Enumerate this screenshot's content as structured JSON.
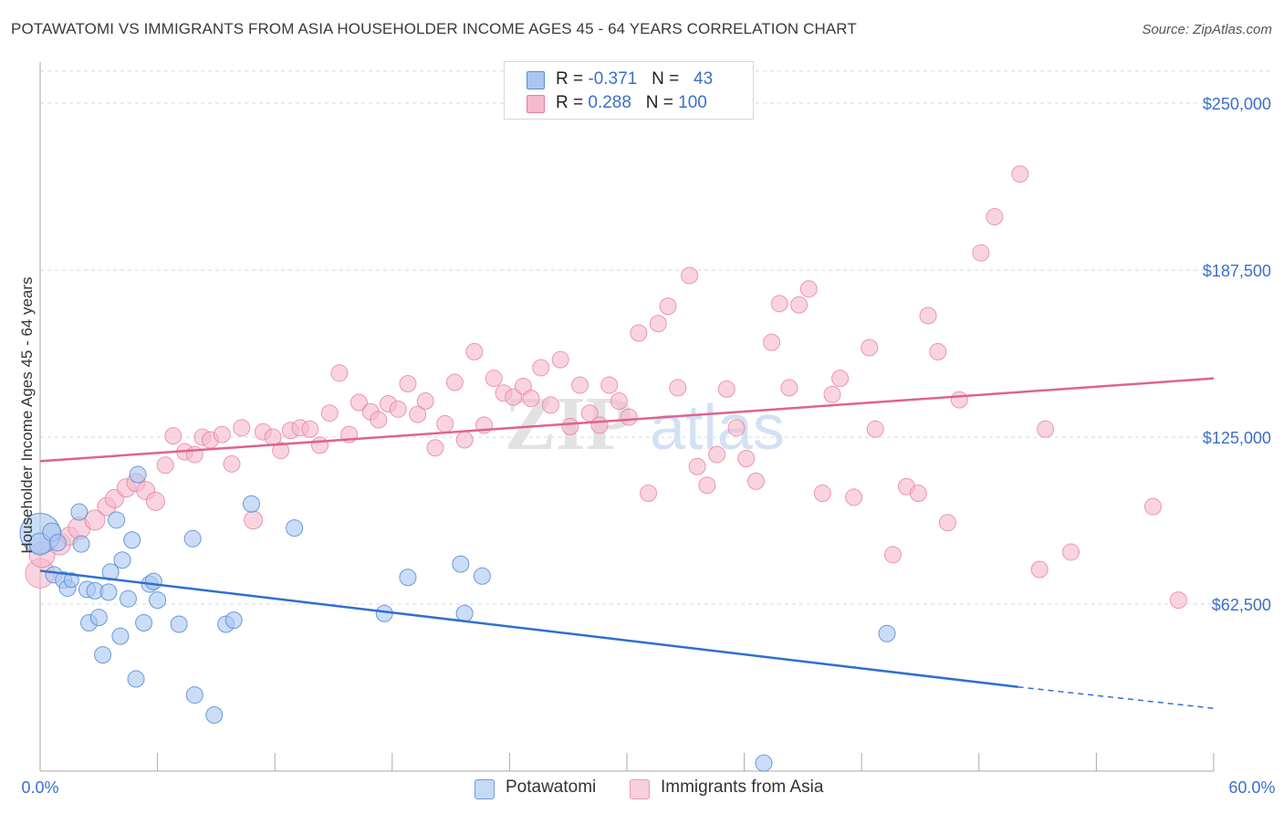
{
  "title": "POTAWATOMI VS IMMIGRANTS FROM ASIA HOUSEHOLDER INCOME AGES 45 - 64 YEARS CORRELATION CHART",
  "source": "Source: ZipAtlas.com",
  "watermark": {
    "zip": "ZIP",
    "atlas": "atlas"
  },
  "colors": {
    "blue_fill": "#a9c6f0",
    "blue_stroke": "#5b8fd6",
    "blue_line": "#2f6fd0",
    "pink_fill": "#f5b8cc",
    "pink_stroke": "#e77fa0",
    "pink_line": "#e0628f",
    "axis_text": "#3b6fc8",
    "grid": "#d9d9d9"
  },
  "legend_top": {
    "rows": [
      {
        "r_label": "R = ",
        "r_value": "-0.371",
        "n_label": "N = ",
        "n_value": "43",
        "color": "#a9c6f0"
      },
      {
        "r_label": "R = ",
        "r_value": " 0.288",
        "n_label": "N = ",
        "n_value": "100",
        "color": "#f5b8cc"
      }
    ]
  },
  "legend_bottom": [
    {
      "label": "Potawatomi",
      "color": "#a9c6f0"
    },
    {
      "label": "Immigrants from Asia",
      "color": "#f5b8cc"
    }
  ],
  "chart_data": {
    "type": "scatter",
    "title": "POTAWATOMI VS IMMIGRANTS FROM ASIA HOUSEHOLDER INCOME AGES 45 - 64 YEARS CORRELATION CHART",
    "xlabel": "",
    "ylabel": "Householder Income Ages 45 - 64 years",
    "xlim": [
      0,
      60
    ],
    "ylim": [
      0,
      262000
    ],
    "x_tick_labels": [
      "0.0%",
      "60.0%"
    ],
    "y_ticks": [
      62500,
      125000,
      187500,
      250000
    ],
    "y_tick_labels": [
      "$62,500",
      "$125,000",
      "$187,500",
      "$250,000"
    ],
    "grid": true,
    "legend_position": "top-center",
    "series": [
      {
        "name": "Potawatomi",
        "color": "#a9c6f0",
        "trend": {
          "x": [
            0,
            50
          ],
          "y": [
            75000,
            31500
          ],
          "dashed_to": [
            60,
            23500
          ]
        },
        "points": [
          [
            0.0,
            89000,
            22
          ],
          [
            0.0,
            85000,
            12
          ],
          [
            0.6,
            89500,
            10
          ],
          [
            0.7,
            73500,
            9
          ],
          [
            0.9,
            85500,
            9
          ],
          [
            1.2,
            71500,
            9
          ],
          [
            1.4,
            68500,
            9
          ],
          [
            1.6,
            71500,
            8
          ],
          [
            2.0,
            97000,
            9
          ],
          [
            2.1,
            85000,
            9
          ],
          [
            2.4,
            68000,
            9
          ],
          [
            2.5,
            55500,
            9
          ],
          [
            2.8,
            67500,
            9
          ],
          [
            3.0,
            57500,
            9
          ],
          [
            3.2,
            43500,
            9
          ],
          [
            3.5,
            67000,
            9
          ],
          [
            3.6,
            74500,
            9
          ],
          [
            3.9,
            94000,
            9
          ],
          [
            4.1,
            50500,
            9
          ],
          [
            4.2,
            79000,
            9
          ],
          [
            4.5,
            64500,
            9
          ],
          [
            4.7,
            86500,
            9
          ],
          [
            4.9,
            34500,
            9
          ],
          [
            5.0,
            111000,
            9
          ],
          [
            5.3,
            55500,
            9
          ],
          [
            5.6,
            70000,
            9
          ],
          [
            5.8,
            71000,
            9
          ],
          [
            6.0,
            64000,
            9
          ],
          [
            7.1,
            55000,
            9
          ],
          [
            7.8,
            87000,
            9
          ],
          [
            7.9,
            28500,
            9
          ],
          [
            8.9,
            21000,
            9
          ],
          [
            9.5,
            55000,
            9
          ],
          [
            9.9,
            56500,
            9
          ],
          [
            10.8,
            100000,
            9
          ],
          [
            13.0,
            91000,
            9
          ],
          [
            17.6,
            59000,
            9
          ],
          [
            18.8,
            72500,
            9
          ],
          [
            21.5,
            77500,
            9
          ],
          [
            21.7,
            59000,
            9
          ],
          [
            22.6,
            73000,
            9
          ],
          [
            37.0,
            3000,
            9
          ],
          [
            43.3,
            51500,
            9
          ]
        ]
      },
      {
        "name": "Immigrants from Asia",
        "color": "#f5b8cc",
        "trend": {
          "x": [
            0,
            60
          ],
          "y": [
            116000,
            147000
          ]
        },
        "points": [
          [
            0.0,
            74000,
            16
          ],
          [
            0.1,
            81000,
            14
          ],
          [
            1.0,
            85000,
            12
          ],
          [
            1.5,
            88000,
            10
          ],
          [
            2.0,
            91000,
            12
          ],
          [
            2.8,
            94000,
            11
          ],
          [
            3.4,
            99000,
            10
          ],
          [
            3.8,
            102000,
            10
          ],
          [
            4.4,
            106000,
            10
          ],
          [
            4.9,
            108000,
            10
          ],
          [
            5.4,
            105000,
            10
          ],
          [
            5.9,
            101000,
            10
          ],
          [
            6.4,
            114500,
            9
          ],
          [
            6.8,
            125500,
            9
          ],
          [
            7.4,
            119500,
            9
          ],
          [
            7.9,
            118500,
            9
          ],
          [
            8.3,
            125000,
            9
          ],
          [
            8.7,
            124000,
            9
          ],
          [
            9.3,
            126000,
            9
          ],
          [
            9.8,
            115000,
            9
          ],
          [
            10.3,
            128500,
            9
          ],
          [
            10.9,
            94000,
            10
          ],
          [
            11.4,
            127000,
            9
          ],
          [
            11.9,
            125000,
            9
          ],
          [
            12.3,
            120000,
            9
          ],
          [
            12.8,
            127500,
            9
          ],
          [
            13.3,
            128500,
            9
          ],
          [
            13.8,
            128000,
            9
          ],
          [
            14.3,
            122000,
            9
          ],
          [
            14.8,
            134000,
            9
          ],
          [
            15.3,
            149000,
            9
          ],
          [
            15.8,
            126000,
            9
          ],
          [
            16.3,
            138000,
            9
          ],
          [
            16.9,
            134500,
            9
          ],
          [
            17.3,
            131500,
            9
          ],
          [
            17.8,
            137500,
            9
          ],
          [
            18.3,
            135500,
            9
          ],
          [
            18.8,
            145000,
            9
          ],
          [
            19.3,
            133500,
            9
          ],
          [
            19.7,
            138500,
            9
          ],
          [
            20.2,
            121000,
            9
          ],
          [
            20.7,
            130000,
            9
          ],
          [
            21.2,
            145500,
            9
          ],
          [
            21.7,
            124000,
            9
          ],
          [
            22.2,
            157000,
            9
          ],
          [
            22.7,
            129500,
            9
          ],
          [
            23.2,
            147000,
            9
          ],
          [
            23.7,
            141500,
            9
          ],
          [
            24.2,
            140000,
            9
          ],
          [
            24.7,
            144000,
            9
          ],
          [
            25.1,
            139500,
            9
          ],
          [
            25.6,
            151000,
            9
          ],
          [
            26.1,
            137000,
            9
          ],
          [
            26.6,
            154000,
            9
          ],
          [
            27.1,
            129000,
            9
          ],
          [
            27.6,
            144500,
            9
          ],
          [
            28.1,
            134000,
            9
          ],
          [
            28.6,
            129500,
            9
          ],
          [
            29.1,
            144500,
            9
          ],
          [
            29.6,
            138500,
            9
          ],
          [
            30.1,
            132500,
            9
          ],
          [
            30.6,
            164000,
            9
          ],
          [
            31.1,
            104000,
            9
          ],
          [
            31.6,
            167500,
            9
          ],
          [
            32.1,
            174000,
            9
          ],
          [
            32.6,
            143500,
            9
          ],
          [
            33.2,
            185500,
            9
          ],
          [
            33.6,
            114000,
            9
          ],
          [
            34.1,
            107000,
            9
          ],
          [
            34.6,
            118500,
            9
          ],
          [
            35.1,
            143000,
            9
          ],
          [
            35.6,
            128500,
            9
          ],
          [
            36.1,
            117000,
            9
          ],
          [
            36.6,
            108500,
            9
          ],
          [
            37.4,
            160500,
            9
          ],
          [
            37.8,
            175000,
            9
          ],
          [
            38.3,
            143500,
            9
          ],
          [
            38.8,
            174500,
            9
          ],
          [
            39.3,
            180500,
            9
          ],
          [
            40.0,
            104000,
            9
          ],
          [
            40.5,
            141000,
            9
          ],
          [
            40.9,
            147000,
            9
          ],
          [
            41.6,
            102500,
            9
          ],
          [
            42.4,
            158500,
            9
          ],
          [
            42.7,
            128000,
            9
          ],
          [
            43.6,
            81000,
            9
          ],
          [
            44.3,
            106500,
            9
          ],
          [
            44.9,
            104000,
            9
          ],
          [
            45.4,
            170500,
            9
          ],
          [
            45.9,
            157000,
            9
          ],
          [
            46.4,
            93000,
            9
          ],
          [
            47.0,
            139000,
            9
          ],
          [
            48.1,
            194000,
            9
          ],
          [
            48.8,
            207500,
            9
          ],
          [
            50.1,
            223500,
            9
          ],
          [
            51.1,
            75500,
            9
          ],
          [
            51.4,
            128000,
            9
          ],
          [
            52.7,
            82000,
            9
          ],
          [
            56.9,
            99000,
            9
          ],
          [
            58.2,
            64000,
            9
          ]
        ]
      }
    ]
  }
}
